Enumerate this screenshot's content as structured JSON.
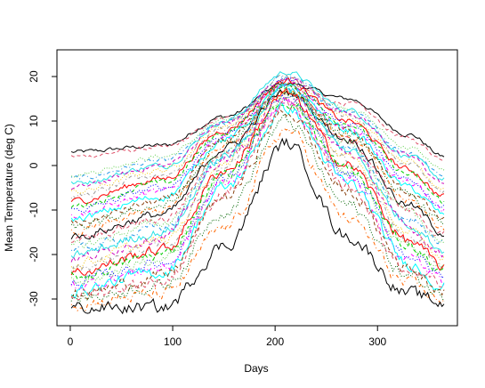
{
  "chart_data": {
    "type": "line",
    "title": "",
    "xlabel": "Days",
    "ylabel": "Mean Temperature (deg C)",
    "xlim": [
      -13,
      378
    ],
    "ylim": [
      -36,
      26
    ],
    "x_ticks": [
      "0",
      "100",
      "200",
      "300"
    ],
    "y_ticks": [
      "-30",
      "-20",
      "-10",
      "0",
      "10",
      "20"
    ],
    "grid": false,
    "legend": "none",
    "x": [
      1,
      91,
      151,
      211,
      271,
      331,
      365
    ],
    "line_styles": [
      "solid",
      "dashed",
      "dotted",
      "dotdash"
    ],
    "series_colors": [
      "#000000",
      "#df536b",
      "#61d04f",
      "#2297e6",
      "#28e2e5",
      "#cd0bbc",
      "#f5c710",
      "#9e9e9e",
      "#ff0000",
      "#00cd00",
      "#0000ff",
      "#ff00ff",
      "#00ffff",
      "#8b4513",
      "#006400",
      "#ff6600"
    ],
    "series": [
      {
        "values": [
          3.0,
          4.5,
          11.0,
          18.5,
          15.0,
          7.0,
          2.0
        ]
      },
      {
        "values": [
          2.0,
          4.0,
          10.5,
          18.0,
          14.0,
          6.0,
          1.5
        ]
      },
      {
        "values": [
          -2.0,
          2.0,
          10.0,
          19.0,
          13.0,
          4.0,
          -1.0
        ]
      },
      {
        "values": [
          -3.0,
          1.0,
          9.5,
          20.0,
          12.0,
          3.0,
          -2.0
        ]
      },
      {
        "values": [
          -4.0,
          0.0,
          10.0,
          21.0,
          12.5,
          2.0,
          -3.0
        ]
      },
      {
        "values": [
          -5.0,
          0.0,
          9.5,
          19.5,
          12.0,
          2.0,
          -4.0
        ]
      },
      {
        "values": [
          -6.0,
          -1.0,
          9.0,
          18.5,
          11.0,
          1.0,
          -5.0
        ]
      },
      {
        "values": [
          -7.0,
          -2.0,
          8.5,
          20.0,
          11.0,
          0.0,
          -6.0
        ]
      },
      {
        "values": [
          -8.0,
          -3.0,
          8.0,
          19.0,
          10.0,
          -1.0,
          -7.0
        ]
      },
      {
        "values": [
          -9.0,
          -4.0,
          7.5,
          18.0,
          9.5,
          -2.0,
          -8.0
        ]
      },
      {
        "values": [
          -10.0,
          -5.0,
          7.0,
          19.5,
          9.0,
          -3.0,
          -9.0
        ]
      },
      {
        "values": [
          -11.0,
          -6.0,
          6.5,
          18.0,
          8.5,
          -4.0,
          -10.0
        ]
      },
      {
        "values": [
          -12.0,
          -7.0,
          6.0,
          17.5,
          8.0,
          -5.0,
          -11.0
        ]
      },
      {
        "values": [
          -13.0,
          -8.0,
          5.5,
          18.0,
          7.5,
          -6.0,
          -12.0
        ]
      },
      {
        "values": [
          -14.0,
          -9.0,
          5.0,
          17.0,
          7.0,
          -7.0,
          -13.0
        ]
      },
      {
        "values": [
          -15.0,
          -10.0,
          4.5,
          17.0,
          6.5,
          -8.0,
          -14.0
        ]
      },
      {
        "values": [
          -16.0,
          -11.0,
          4.0,
          16.5,
          6.0,
          -9.0,
          -15.0
        ]
      },
      {
        "values": [
          -17.0,
          -12.0,
          3.5,
          19.0,
          5.5,
          -10.0,
          -16.0
        ]
      },
      {
        "values": [
          -18.0,
          -13.0,
          3.0,
          16.0,
          5.0,
          -11.0,
          -17.0
        ]
      },
      {
        "values": [
          -19.0,
          -14.0,
          2.5,
          18.0,
          4.0,
          -12.0,
          -18.0
        ]
      },
      {
        "values": [
          -20.0,
          -15.0,
          2.0,
          17.5,
          3.5,
          -13.0,
          -19.0
        ]
      },
      {
        "values": [
          -21.0,
          -16.0,
          1.5,
          15.5,
          3.0,
          -14.0,
          -20.0
        ]
      },
      {
        "values": [
          -22.0,
          -17.0,
          1.0,
          17.0,
          2.0,
          -15.0,
          -21.0
        ]
      },
      {
        "values": [
          -23.0,
          -18.0,
          0.0,
          15.0,
          1.0,
          -16.0,
          -22.0
        ]
      },
      {
        "values": [
          -24.0,
          -19.0,
          -1.0,
          16.0,
          0.0,
          -17.0,
          -23.0
        ]
      },
      {
        "values": [
          -25.0,
          -20.0,
          -2.0,
          14.5,
          -1.0,
          -18.0,
          -24.0
        ]
      },
      {
        "values": [
          -26.0,
          -22.0,
          -3.0,
          15.0,
          -2.0,
          -20.0,
          -25.0
        ]
      },
      {
        "values": [
          -27.0,
          -23.0,
          -4.0,
          14.0,
          -3.0,
          -21.0,
          -26.0
        ]
      },
      {
        "values": [
          -28.0,
          -24.0,
          -5.0,
          13.0,
          -4.0,
          -22.0,
          -27.0
        ]
      },
      {
        "values": [
          -29.0,
          -25.0,
          -7.0,
          12.0,
          -6.0,
          -23.0,
          -28.0
        ]
      },
      {
        "values": [
          -30.0,
          -27.0,
          -10.0,
          10.0,
          -9.0,
          -25.0,
          -29.0
        ]
      },
      {
        "values": [
          -31.0,
          -29.0,
          -14.0,
          8.0,
          -12.0,
          -27.0,
          -30.0
        ]
      },
      {
        "values": [
          -32.0,
          -32.0,
          -18.0,
          5.0,
          -16.0,
          -29.0,
          -31.0
        ]
      },
      {
        "values": [
          -29.0,
          -26.0,
          -6.0,
          13.5,
          -5.0,
          -24.0,
          -27.0
        ]
      },
      {
        "values": [
          -26.0,
          -21.0,
          -2.5,
          15.0,
          -1.5,
          -19.0,
          -23.0
        ]
      }
    ]
  }
}
